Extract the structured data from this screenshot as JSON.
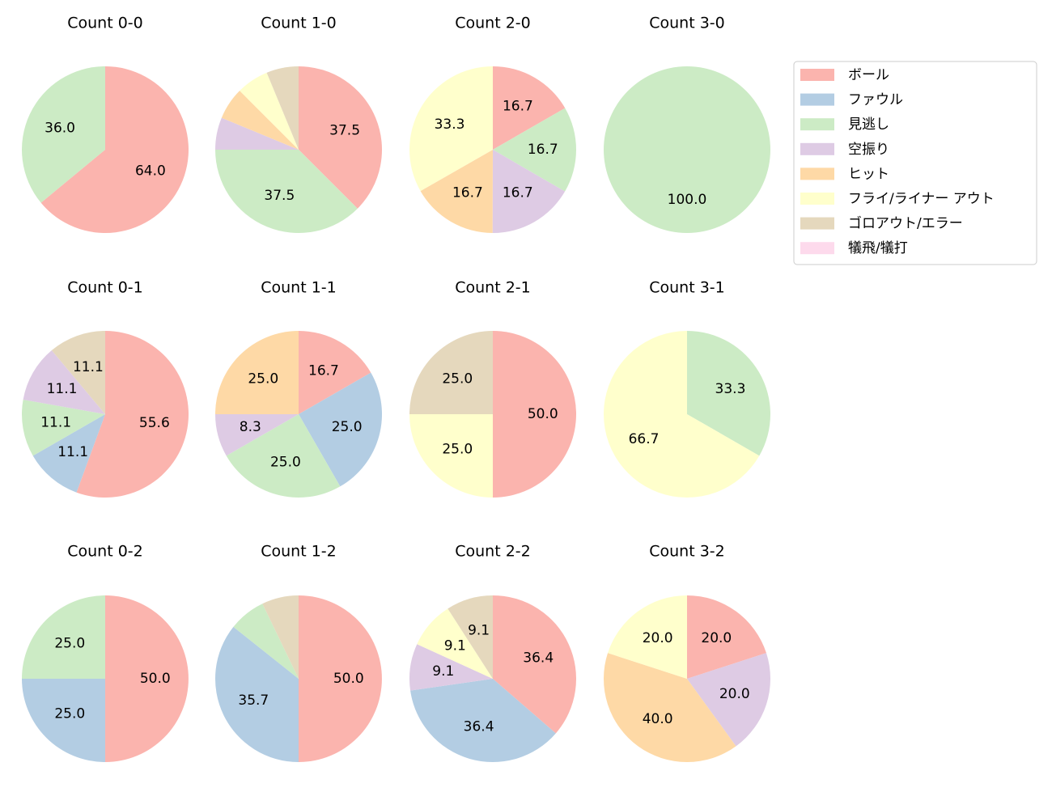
{
  "legend": {
    "labels": [
      "ボール",
      "ファウル",
      "見逃し",
      "空振り",
      "ヒット",
      "フライ/ライナー アウト",
      "ゴロアウト/エラー",
      "犠飛/犠打"
    ],
    "colors": [
      "#fbb4ae",
      "#b3cde3",
      "#ccebc5",
      "#decbe4",
      "#fed9a6",
      "#ffffcc",
      "#e5d8bd",
      "#fddaec"
    ]
  },
  "chart_data": [
    {
      "type": "pie",
      "title": "Count 0-0",
      "values": [
        64,
        0,
        36,
        0,
        0,
        0,
        0,
        0
      ],
      "value_labels": [
        "64.0",
        null,
        "36.0",
        null,
        null,
        null,
        null,
        null
      ]
    },
    {
      "type": "pie",
      "title": "Count 1-0",
      "values": [
        37.5,
        0,
        37.5,
        6.25,
        6.25,
        6.25,
        6.25,
        0
      ],
      "value_labels": [
        "37.5",
        null,
        "37.5",
        null,
        null,
        null,
        null,
        null
      ]
    },
    {
      "type": "pie",
      "title": "Count 2-0",
      "values": [
        16.7,
        0,
        16.7,
        16.7,
        16.7,
        33.3,
        0,
        0
      ],
      "value_labels": [
        "16.7",
        null,
        "16.7",
        "16.7",
        "16.7",
        "33.3",
        null,
        null
      ]
    },
    {
      "type": "pie",
      "title": "Count 3-0",
      "values": [
        0,
        0,
        100,
        0,
        0,
        0,
        0,
        0
      ],
      "value_labels": [
        null,
        null,
        "100.0",
        null,
        null,
        null,
        null,
        null
      ]
    },
    {
      "type": "pie",
      "title": "Count 0-1",
      "values": [
        55.6,
        11.1,
        11.1,
        11.1,
        0,
        0,
        11.1,
        0
      ],
      "value_labels": [
        "55.6",
        "11.1",
        "11.1",
        "11.1",
        null,
        null,
        "11.1",
        null
      ]
    },
    {
      "type": "pie",
      "title": "Count 1-1",
      "values": [
        16.7,
        25,
        25,
        8.3,
        25,
        0,
        0,
        0
      ],
      "value_labels": [
        "16.7",
        "25.0",
        "25.0",
        "8.3",
        "25.0",
        null,
        null,
        null
      ]
    },
    {
      "type": "pie",
      "title": "Count 2-1",
      "values": [
        50,
        0,
        0,
        0,
        0,
        25,
        25,
        0
      ],
      "value_labels": [
        "50.0",
        null,
        null,
        null,
        null,
        "25.0",
        "25.0",
        null
      ]
    },
    {
      "type": "pie",
      "title": "Count 3-1",
      "values": [
        0,
        0,
        33.3,
        0,
        0,
        66.7,
        0,
        0
      ],
      "value_labels": [
        null,
        null,
        "33.3",
        null,
        null,
        "66.7",
        null,
        null
      ]
    },
    {
      "type": "pie",
      "title": "Count 0-2",
      "values": [
        50,
        25,
        25,
        0,
        0,
        0,
        0,
        0
      ],
      "value_labels": [
        "50.0",
        "25.0",
        "25.0",
        null,
        null,
        null,
        null,
        null
      ]
    },
    {
      "type": "pie",
      "title": "Count 1-2",
      "values": [
        50,
        35.7,
        7.15,
        0,
        0,
        0,
        7.15,
        0
      ],
      "value_labels": [
        "50.0",
        "35.7",
        null,
        null,
        null,
        null,
        null,
        null
      ]
    },
    {
      "type": "pie",
      "title": "Count 2-2",
      "values": [
        36.4,
        36.4,
        0,
        9.1,
        0,
        9.1,
        9.1,
        0
      ],
      "value_labels": [
        "36.4",
        "36.4",
        null,
        "9.1",
        null,
        "9.1",
        "9.1",
        null
      ]
    },
    {
      "type": "pie",
      "title": "Count 3-2",
      "values": [
        20,
        0,
        0,
        20,
        40,
        20,
        0,
        0
      ],
      "value_labels": [
        "20.0",
        null,
        null,
        "20.0",
        "40.0",
        "20.0",
        null,
        null
      ]
    }
  ]
}
